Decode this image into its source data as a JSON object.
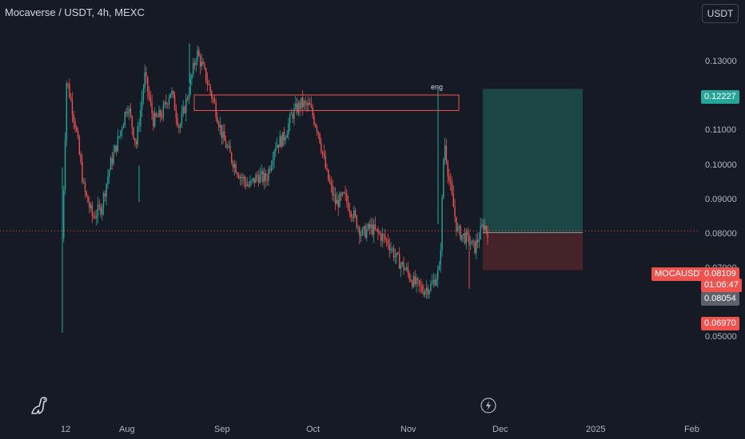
{
  "header": {
    "title": "Mocaverse / USDT, 4h, MEXC",
    "currency_button": "USDT"
  },
  "annotations": {
    "eng_label": "eng"
  },
  "price_tags": {
    "target": "0.12227",
    "symbol": "MOCAUSDT",
    "last": "0.08109",
    "countdown": "01:06:47",
    "entry": "0.08054",
    "stop": "0.06970"
  },
  "colors": {
    "background": "#161a25",
    "up": "#26a69a",
    "down": "#ef5350",
    "target_zone": "#1b4a48",
    "stop_zone": "#4a2329",
    "resistance_box": "#ef5350"
  },
  "icons": [
    "dinosaur-logo-icon",
    "lightning-bolt-icon"
  ],
  "chart_data": {
    "type": "candlestick",
    "title": "Mocaverse / USDT, 4h, MEXC",
    "ylim": [
      0.05,
      0.136
    ],
    "y_scale": "linear",
    "y_ticks": [
      0.05,
      0.06,
      0.07,
      0.08,
      0.09,
      0.1,
      0.11,
      0.12,
      0.13
    ],
    "y_tick_labels": [
      "0.05000",
      "0.06000",
      "0.07000",
      "0.08000",
      "0.09000",
      "0.10000",
      "0.11000",
      "0.12000",
      "0.13000"
    ],
    "x_tick_labels": [
      "12",
      "Aug",
      "Sep",
      "Oct",
      "Nov",
      "Dec",
      "2025",
      "Feb"
    ],
    "price_path_close": [
      [
        0,
        0.079
      ],
      [
        1,
        0.125
      ],
      [
        3,
        0.112
      ],
      [
        5,
        0.093
      ],
      [
        7,
        0.085
      ],
      [
        9,
        0.088
      ],
      [
        11,
        0.1
      ],
      [
        13,
        0.108
      ],
      [
        15,
        0.118
      ],
      [
        17,
        0.106
      ],
      [
        19,
        0.126
      ],
      [
        21,
        0.113
      ],
      [
        23,
        0.115
      ],
      [
        25,
        0.122
      ],
      [
        27,
        0.111
      ],
      [
        29,
        0.121
      ],
      [
        31,
        0.133
      ],
      [
        33,
        0.126
      ],
      [
        35,
        0.118
      ],
      [
        37,
        0.108
      ],
      [
        39,
        0.102
      ],
      [
        41,
        0.097
      ],
      [
        43,
        0.094
      ],
      [
        45,
        0.097
      ],
      [
        47,
        0.096
      ],
      [
        49,
        0.106
      ],
      [
        51,
        0.108
      ],
      [
        53,
        0.115
      ],
      [
        55,
        0.118
      ],
      [
        57,
        0.117
      ],
      [
        59,
        0.11
      ],
      [
        61,
        0.097
      ],
      [
        63,
        0.089
      ],
      [
        65,
        0.091
      ],
      [
        67,
        0.086
      ],
      [
        69,
        0.08
      ],
      [
        71,
        0.082
      ],
      [
        73,
        0.08
      ],
      [
        75,
        0.078
      ],
      [
        77,
        0.073
      ],
      [
        79,
        0.07
      ],
      [
        81,
        0.066
      ],
      [
        83,
        0.064
      ],
      [
        85,
        0.065
      ],
      [
        87,
        0.07
      ],
      [
        88,
        0.108
      ],
      [
        89,
        0.097
      ],
      [
        91,
        0.081
      ],
      [
        93,
        0.079
      ],
      [
        95,
        0.076
      ],
      [
        97,
        0.083
      ],
      [
        98,
        0.081
      ]
    ],
    "trade_setup": {
      "take_profit": 0.12227,
      "entry": 0.08054,
      "stop_loss": 0.0697,
      "last_price": 0.08109
    },
    "resistance_zone": [
      0.116,
      0.1205
    ],
    "wick_high_label": "eng",
    "grid": false,
    "legend": "none"
  }
}
